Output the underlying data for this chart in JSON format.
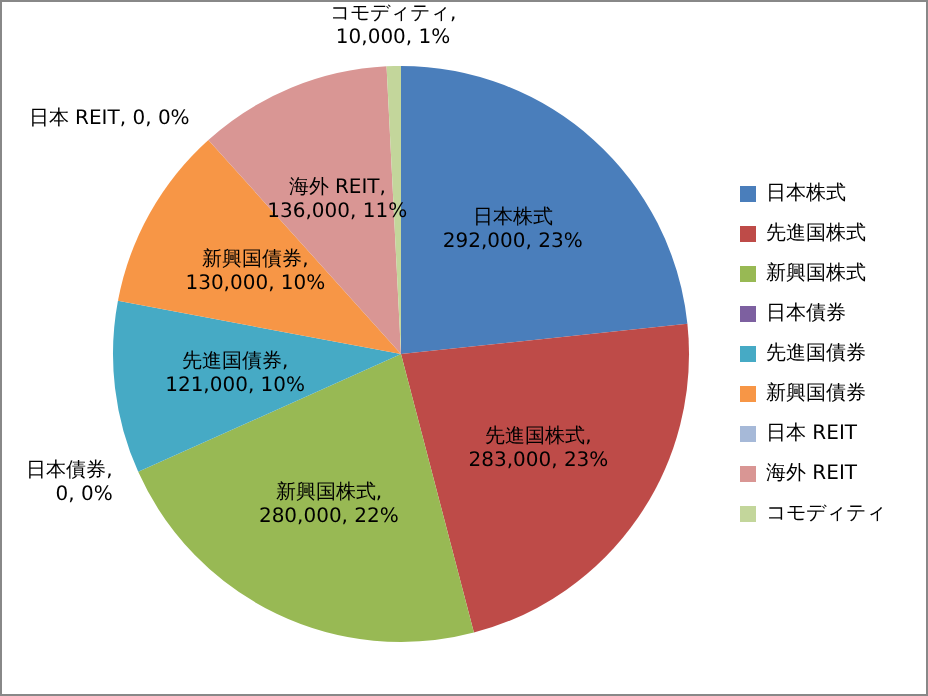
{
  "chart_data": {
    "type": "pie",
    "categories": [
      "日本株式",
      "先進国株式",
      "新興国株式",
      "日本債券",
      "先進国債券",
      "新興国債券",
      "日本 REIT",
      "海外 REIT",
      "コモディティ"
    ],
    "values": [
      292000,
      283000,
      280000,
      0,
      121000,
      130000,
      0,
      136000,
      10000
    ],
    "colors": [
      "#4a7ebb",
      "#be4b48",
      "#98b954",
      "#7d60a0",
      "#46aac5",
      "#f79646",
      "#a6b9d8",
      "#d99694",
      "#c3d69b"
    ],
    "value_labels": [
      "日本株式\n292,000, 23%",
      "先進国株式,\n283,000, 23%",
      "新興国株式,\n280,000, 22%",
      "日本債券,\n0, 0%",
      "先進国債券,\n121,000, 10%",
      "新興国債券,\n130,000, 10%",
      "日本 REIT, 0, 0%",
      "海外 REIT,\n136,000, 11%",
      "コモディティ,\n10,000, 1%"
    ],
    "legend": "right"
  }
}
